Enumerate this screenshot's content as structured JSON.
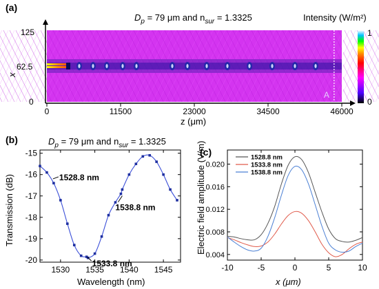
{
  "chart_data": [
    {
      "type": "heatmap",
      "panel": "(a)",
      "title_parts": [
        "D",
        "p",
        " = 79 μm and n",
        "sur",
        " = 1.3325"
      ],
      "xlabel": "z (μm)",
      "ylabel": "x",
      "x_ticks": [
        "0",
        "11500",
        "23000",
        "34500",
        "46000"
      ],
      "y_ticks": [
        "125",
        "62.5",
        "0"
      ],
      "xlim": [
        0,
        46000
      ],
      "ylim": [
        0,
        125
      ],
      "colorbar": {
        "label": "Intensity (W/m²)",
        "max_label": "1",
        "min_label": "0",
        "colors": [
          "#000000",
          "#4b00ff",
          "#ff00ff",
          "#ff0000",
          "#ff8c00",
          "#ffff00",
          "#00ff00",
          "#00bfff",
          "#ffffff"
        ]
      },
      "marker": {
        "label": "A",
        "z": 44800
      }
    },
    {
      "type": "line",
      "panel": "(b)",
      "title_parts": [
        "D",
        "p",
        " = 79 μm and n",
        "sur",
        " = 1.3325"
      ],
      "xlabel": "Wavelength (nm)",
      "ylabel": "Transmission (dB)",
      "xlim": [
        1527,
        1547.5
      ],
      "ylim": [
        -20.1,
        -14.85
      ],
      "x_ticks": [
        1530,
        1535,
        1540,
        1545
      ],
      "y_ticks": [
        -15,
        -16,
        -17,
        -18,
        -19,
        -20
      ],
      "series": [
        {
          "color": "#3b4fd8",
          "x": [
            1527.0,
            1528.0,
            1529.0,
            1530.0,
            1531.0,
            1532.0,
            1533.0,
            1533.8,
            1534.0,
            1535.0,
            1536.0,
            1537.0,
            1538.0,
            1538.8,
            1539.0,
            1540.0,
            1541.0,
            1542.0,
            1543.0,
            1544.0,
            1545.0,
            1546.0,
            1547.0
          ],
          "y": [
            -15.6,
            -15.9,
            -16.4,
            -17.2,
            -18.3,
            -19.3,
            -19.8,
            -19.85,
            -19.9,
            -19.7,
            -18.9,
            -17.9,
            -17.3,
            -16.9,
            -16.7,
            -16.0,
            -15.5,
            -15.15,
            -15.1,
            -15.4,
            -16.0,
            -16.7,
            -17.2
          ]
        }
      ],
      "annotations": [
        {
          "text": "1528.8 nm",
          "x": 1528.8,
          "y": -16.2
        },
        {
          "text": "1538.8 nm",
          "x": 1538.8,
          "y": -16.9
        },
        {
          "text": "1533.8 nm",
          "x": 1533.8,
          "y": -19.85
        }
      ]
    },
    {
      "type": "line",
      "panel": "(c)",
      "xlabel": "x (μm)",
      "ylabel": "Electric field amplitude (V/m)",
      "xlim": [
        -10,
        10
      ],
      "ylim": [
        0.003,
        0.0225
      ],
      "x_ticks": [
        -10,
        -5,
        0,
        5,
        10
      ],
      "y_ticks": [
        "0.004",
        "0.008",
        "0.012",
        "0.016",
        "0.020"
      ],
      "legend_position": "top-left",
      "series": [
        {
          "name": "1528.8 nm",
          "color": "#555555",
          "x": [
            -10,
            -9,
            -8,
            -7,
            -6,
            -5,
            -4,
            -3,
            -2,
            -1,
            0,
            1,
            2,
            3,
            4,
            5,
            6,
            7,
            8,
            9,
            10
          ],
          "y": [
            0.0072,
            0.0071,
            0.0068,
            0.0066,
            0.0066,
            0.0075,
            0.0095,
            0.0125,
            0.0165,
            0.0198,
            0.0213,
            0.0208,
            0.0185,
            0.015,
            0.0115,
            0.0085,
            0.0068,
            0.0063,
            0.0062,
            0.0065,
            0.007
          ]
        },
        {
          "name": "1533.8 nm",
          "color": "#e05a4a",
          "x": [
            -10,
            -9,
            -8,
            -7,
            -6,
            -5,
            -4,
            -3,
            -2,
            -1,
            0,
            1,
            2,
            3,
            4,
            5,
            6,
            7,
            8,
            9,
            10
          ],
          "y": [
            0.007,
            0.0066,
            0.0061,
            0.0057,
            0.0054,
            0.0055,
            0.0062,
            0.0076,
            0.0094,
            0.0109,
            0.0116,
            0.0113,
            0.01,
            0.008,
            0.0058,
            0.0043,
            0.0036,
            0.004,
            0.005,
            0.0058,
            0.0062
          ]
        },
        {
          "name": "1538.8 nm",
          "color": "#4a7fd4",
          "x": [
            -10,
            -9,
            -8,
            -7,
            -6,
            -5,
            -4,
            -3,
            -2,
            -1,
            0,
            1,
            2,
            3,
            4,
            5,
            6,
            7,
            8,
            9,
            10
          ],
          "y": [
            0.0071,
            0.0062,
            0.0054,
            0.0048,
            0.0046,
            0.0051,
            0.0072,
            0.0105,
            0.0145,
            0.018,
            0.0196,
            0.019,
            0.0165,
            0.0128,
            0.009,
            0.006,
            0.0048,
            0.0044,
            0.0046,
            0.0054,
            0.006
          ]
        }
      ]
    }
  ]
}
